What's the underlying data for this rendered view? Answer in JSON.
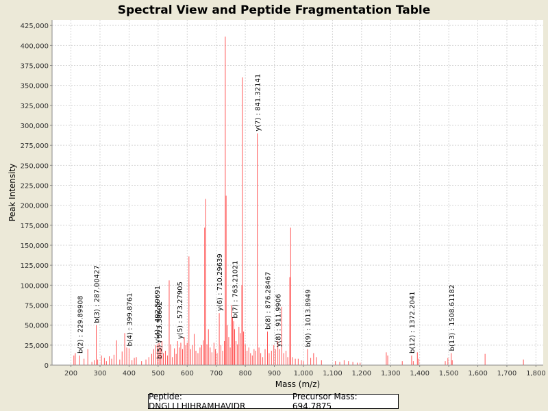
{
  "chart_data": {
    "type": "bar",
    "title": "Spectral View and Peptide Fragmentation Table",
    "xlabel": "Mass (m/z)",
    "ylabel": "Peak Intensity",
    "xlim": [
      135,
      1825
    ],
    "ylim": [
      0,
      432000
    ],
    "xticks": [
      200,
      300,
      400,
      500,
      600,
      700,
      800,
      900,
      1000,
      1100,
      1200,
      1300,
      1400,
      1500,
      1600,
      1700,
      1800
    ],
    "xtick_labels": [
      "200",
      "300",
      "400",
      "500",
      "600",
      "700",
      "800",
      "900",
      "1,000",
      "1,100",
      "1,200",
      "1,300",
      "1,400",
      "1,500",
      "1,600",
      "1,700",
      "1,800"
    ],
    "yticks": [
      0,
      25000,
      50000,
      75000,
      100000,
      125000,
      150000,
      175000,
      200000,
      225000,
      250000,
      275000,
      300000,
      325000,
      350000,
      375000,
      400000,
      425000
    ],
    "ytick_labels": [
      "0",
      "25,000",
      "50,000",
      "75,000",
      "100,000",
      "125,000",
      "150,000",
      "175,000",
      "200,000",
      "225,000",
      "250,000",
      "275,000",
      "300,000",
      "325,000",
      "350,000",
      "375,000",
      "400,000",
      "425,000"
    ],
    "grid": true,
    "series_color": "#ff5555",
    "peaks": [
      {
        "mz": 210,
        "i": 12000
      },
      {
        "mz": 215,
        "i": 15000
      },
      {
        "mz": 229.9,
        "i": 12000
      },
      {
        "mz": 245,
        "i": 8000
      },
      {
        "mz": 258,
        "i": 20000
      },
      {
        "mz": 272,
        "i": 4000
      },
      {
        "mz": 280,
        "i": 6000
      },
      {
        "mz": 287,
        "i": 50000
      },
      {
        "mz": 292,
        "i": 7000
      },
      {
        "mz": 305,
        "i": 12000
      },
      {
        "mz": 315,
        "i": 9000
      },
      {
        "mz": 322,
        "i": 5000
      },
      {
        "mz": 332,
        "i": 11000
      },
      {
        "mz": 340,
        "i": 8000
      },
      {
        "mz": 348,
        "i": 13000
      },
      {
        "mz": 357,
        "i": 31000
      },
      {
        "mz": 368,
        "i": 7000
      },
      {
        "mz": 376,
        "i": 17000
      },
      {
        "mz": 385,
        "i": 40000
      },
      {
        "mz": 392,
        "i": 22000
      },
      {
        "mz": 399.9,
        "i": 21000
      },
      {
        "mz": 410,
        "i": 6000
      },
      {
        "mz": 418,
        "i": 9000
      },
      {
        "mz": 425,
        "i": 10000
      },
      {
        "mz": 443,
        "i": 5000
      },
      {
        "mz": 458,
        "i": 7000
      },
      {
        "mz": 468,
        "i": 10000
      },
      {
        "mz": 478,
        "i": 14000
      },
      {
        "mz": 485,
        "i": 20000
      },
      {
        "mz": 492,
        "i": 25000
      },
      {
        "mz": 497,
        "i": 26000
      },
      {
        "mz": 503,
        "i": 28000
      },
      {
        "mz": 508,
        "i": 22000
      },
      {
        "mz": 513,
        "i": 30000
      },
      {
        "mz": 518,
        "i": 15000
      },
      {
        "mz": 525,
        "i": 18000
      },
      {
        "mz": 532,
        "i": 12000
      },
      {
        "mz": 538,
        "i": 106000
      },
      {
        "mz": 543,
        "i": 26000
      },
      {
        "mz": 549,
        "i": 10000
      },
      {
        "mz": 556,
        "i": 21000
      },
      {
        "mz": 562,
        "i": 14000
      },
      {
        "mz": 567,
        "i": 30000
      },
      {
        "mz": 573,
        "i": 22000
      },
      {
        "mz": 578,
        "i": 28000
      },
      {
        "mz": 584,
        "i": 20000
      },
      {
        "mz": 590,
        "i": 35000
      },
      {
        "mz": 595,
        "i": 25000
      },
      {
        "mz": 600,
        "i": 28000
      },
      {
        "mz": 606,
        "i": 136000
      },
      {
        "mz": 612,
        "i": 20000
      },
      {
        "mz": 618,
        "i": 25000
      },
      {
        "mz": 624,
        "i": 39000
      },
      {
        "mz": 630,
        "i": 18000
      },
      {
        "mz": 637,
        "i": 15000
      },
      {
        "mz": 644,
        "i": 22000
      },
      {
        "mz": 650,
        "i": 25000
      },
      {
        "mz": 656,
        "i": 31000
      },
      {
        "mz": 660,
        "i": 172000
      },
      {
        "mz": 664,
        "i": 208000
      },
      {
        "mz": 668,
        "i": 26000
      },
      {
        "mz": 673,
        "i": 45000
      },
      {
        "mz": 679,
        "i": 22000
      },
      {
        "mz": 685,
        "i": 16000
      },
      {
        "mz": 692,
        "i": 28000
      },
      {
        "mz": 697,
        "i": 20000
      },
      {
        "mz": 703,
        "i": 15000
      },
      {
        "mz": 710.3,
        "i": 65000
      },
      {
        "mz": 716,
        "i": 25000
      },
      {
        "mz": 722,
        "i": 18000
      },
      {
        "mz": 728,
        "i": 30000
      },
      {
        "mz": 731,
        "i": 411000
      },
      {
        "mz": 734,
        "i": 212000
      },
      {
        "mz": 738,
        "i": 50000
      },
      {
        "mz": 743,
        "i": 35000
      },
      {
        "mz": 748,
        "i": 22000
      },
      {
        "mz": 752,
        "i": 75000
      },
      {
        "mz": 756,
        "i": 60000
      },
      {
        "mz": 760,
        "i": 55000
      },
      {
        "mz": 763.2,
        "i": 45000
      },
      {
        "mz": 768,
        "i": 30000
      },
      {
        "mz": 773,
        "i": 26000
      },
      {
        "mz": 778,
        "i": 48000
      },
      {
        "mz": 783,
        "i": 40000
      },
      {
        "mz": 788,
        "i": 100000
      },
      {
        "mz": 790,
        "i": 360000
      },
      {
        "mz": 794,
        "i": 42000
      },
      {
        "mz": 800,
        "i": 26000
      },
      {
        "mz": 806,
        "i": 18000
      },
      {
        "mz": 812,
        "i": 22000
      },
      {
        "mz": 818,
        "i": 15000
      },
      {
        "mz": 824,
        "i": 12000
      },
      {
        "mz": 830,
        "i": 20000
      },
      {
        "mz": 836,
        "i": 18000
      },
      {
        "mz": 841.3,
        "i": 290000
      },
      {
        "mz": 847,
        "i": 22000
      },
      {
        "mz": 853,
        "i": 15000
      },
      {
        "mz": 860,
        "i": 10000
      },
      {
        "mz": 868,
        "i": 20000
      },
      {
        "mz": 876.3,
        "i": 42000
      },
      {
        "mz": 882,
        "i": 15000
      },
      {
        "mz": 890,
        "i": 18000
      },
      {
        "mz": 898,
        "i": 25000
      },
      {
        "mz": 904,
        "i": 20000
      },
      {
        "mz": 911.9,
        "i": 30000
      },
      {
        "mz": 918,
        "i": 20000
      },
      {
        "mz": 925,
        "i": 73000
      },
      {
        "mz": 932,
        "i": 15000
      },
      {
        "mz": 940,
        "i": 18000
      },
      {
        "mz": 946,
        "i": 10000
      },
      {
        "mz": 953,
        "i": 110000
      },
      {
        "mz": 956,
        "i": 172000
      },
      {
        "mz": 962,
        "i": 10000
      },
      {
        "mz": 972,
        "i": 8000
      },
      {
        "mz": 982,
        "i": 8000
      },
      {
        "mz": 993,
        "i": 6000
      },
      {
        "mz": 1000,
        "i": 5000
      },
      {
        "mz": 1013.9,
        "i": 20000
      },
      {
        "mz": 1025,
        "i": 9000
      },
      {
        "mz": 1035,
        "i": 15000
      },
      {
        "mz": 1045,
        "i": 10000
      },
      {
        "mz": 1062,
        "i": 6000
      },
      {
        "mz": 1110,
        "i": 5000
      },
      {
        "mz": 1125,
        "i": 4000
      },
      {
        "mz": 1140,
        "i": 6000
      },
      {
        "mz": 1155,
        "i": 5000
      },
      {
        "mz": 1170,
        "i": 4000
      },
      {
        "mz": 1185,
        "i": 3000
      },
      {
        "mz": 1195,
        "i": 3000
      },
      {
        "mz": 1285,
        "i": 16000
      },
      {
        "mz": 1290,
        "i": 12000
      },
      {
        "mz": 1340,
        "i": 5000
      },
      {
        "mz": 1372.2,
        "i": 12000
      },
      {
        "mz": 1378,
        "i": 5000
      },
      {
        "mz": 1392,
        "i": 16000
      },
      {
        "mz": 1397,
        "i": 8000
      },
      {
        "mz": 1488,
        "i": 5000
      },
      {
        "mz": 1497,
        "i": 9000
      },
      {
        "mz": 1508.6,
        "i": 15000
      },
      {
        "mz": 1512,
        "i": 6000
      },
      {
        "mz": 1625,
        "i": 14000
      },
      {
        "mz": 1757,
        "i": 7000
      }
    ],
    "annotations": [
      {
        "label": "b(2) : 229.89908",
        "mz": 229.9,
        "y": 12000
      },
      {
        "label": "b(3) : 287.00427",
        "mz": 287.0,
        "y": 50000
      },
      {
        "label": "b(4) : 399.8761",
        "mz": 399.9,
        "y": 21000
      },
      {
        "label": "b(5) : 513.38602",
        "mz": 503.0,
        "y": 5000
      },
      {
        "label": "y(4) : 492.59691",
        "mz": 496.0,
        "y": 25000
      },
      {
        "label": "y(5) : 573.27905",
        "mz": 573.3,
        "y": 30000
      },
      {
        "label": "y(6) : 710.29639",
        "mz": 710.3,
        "y": 65000
      },
      {
        "label": "b(7) : 763.21021",
        "mz": 763.2,
        "y": 56000
      },
      {
        "label": "y(7) : 841.32141",
        "mz": 841.3,
        "y": 290000
      },
      {
        "label": "b(8) : 876.28467",
        "mz": 876.3,
        "y": 42000
      },
      {
        "label": "y(8) : 911.9906",
        "mz": 911.9,
        "y": 20000
      },
      {
        "label": "b(9) : 1013.8949",
        "mz": 1013.9,
        "y": 20000
      },
      {
        "label": "b(12) : 1372.2041",
        "mz": 1372.2,
        "y": 12000
      },
      {
        "label": "b(13) : 1508.61182",
        "mz": 1508.6,
        "y": 15000
      }
    ]
  },
  "footer": {
    "peptide": "Peptide: DNGLLLHIHRAMHAVIDR",
    "precursor": "Precursor Mass: 694.7875"
  }
}
